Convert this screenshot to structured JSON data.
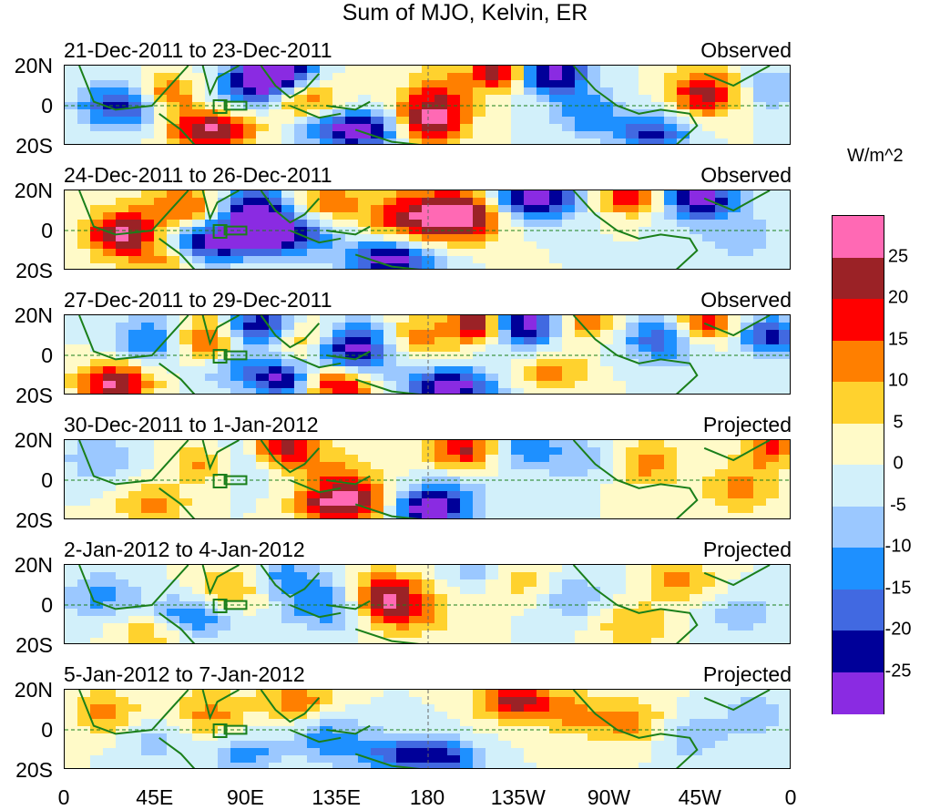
{
  "title": "Sum of MJO, Kelvin, ER",
  "units": "W/m^2",
  "panels": [
    {
      "dates": "21-Dec-2011 to 23-Dec-2011",
      "kind": "Observed"
    },
    {
      "dates": "24-Dec-2011 to 26-Dec-2011",
      "kind": "Observed"
    },
    {
      "dates": "27-Dec-2011 to 29-Dec-2011",
      "kind": "Observed"
    },
    {
      "dates": "30-Dec-2011 to 1-Jan-2012",
      "kind": "Projected"
    },
    {
      "dates": "2-Jan-2012 to 4-Jan-2012",
      "kind": "Projected"
    },
    {
      "dates": "5-Jan-2012 to 7-Jan-2012",
      "kind": "Projected"
    }
  ],
  "lat_labels": [
    "20N",
    "0",
    "20S"
  ],
  "lon_labels": [
    "0",
    "45E",
    "90E",
    "135E",
    "180",
    "135W",
    "90W",
    "45W",
    "0"
  ],
  "colorbar": {
    "labels": [
      "25",
      "20",
      "15",
      "10",
      "5",
      "0",
      "-5",
      "-10",
      "-15",
      "-20",
      "-25"
    ],
    "colors": [
      "#ff69b4",
      "#9b2226",
      "#ff0000",
      "#ff7f00",
      "#ffd22e",
      "#fffac8",
      "#d2f0fa",
      "#9bc8ff",
      "#1e90ff",
      "#4169e1",
      "#000099",
      "#8a2be2"
    ]
  },
  "colors": {
    "land_outline": "#1a7f1a",
    "equator_line": "#1a7f1a"
  }
}
